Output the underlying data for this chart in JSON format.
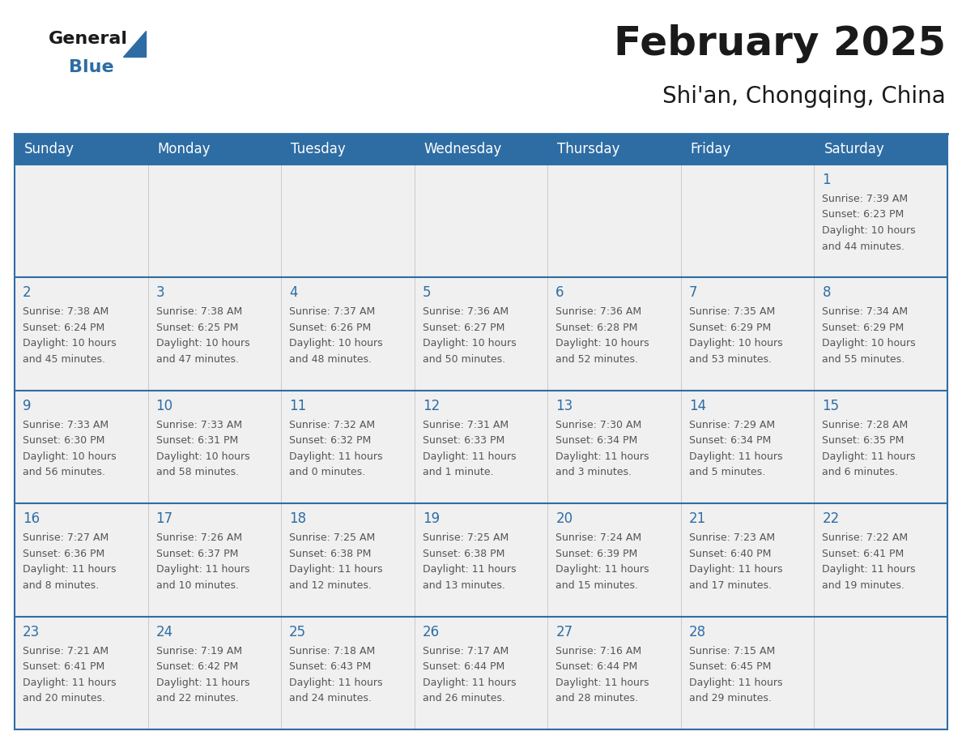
{
  "title": "February 2025",
  "subtitle": "Shi'an, Chongqing, China",
  "header_color": "#2E6DA4",
  "header_text_color": "#FFFFFF",
  "border_color": "#2E6DA4",
  "day_number_color": "#2E6DA4",
  "text_color": "#555555",
  "days_of_week": [
    "Sunday",
    "Monday",
    "Tuesday",
    "Wednesday",
    "Thursday",
    "Friday",
    "Saturday"
  ],
  "calendar_data": [
    [
      null,
      null,
      null,
      null,
      null,
      null,
      {
        "day": "1",
        "sunrise": "7:39 AM",
        "sunset": "6:23 PM",
        "daylight_line1": "Daylight: 10 hours",
        "daylight_line2": "and 44 minutes."
      }
    ],
    [
      {
        "day": "2",
        "sunrise": "7:38 AM",
        "sunset": "6:24 PM",
        "daylight_line1": "Daylight: 10 hours",
        "daylight_line2": "and 45 minutes."
      },
      {
        "day": "3",
        "sunrise": "7:38 AM",
        "sunset": "6:25 PM",
        "daylight_line1": "Daylight: 10 hours",
        "daylight_line2": "and 47 minutes."
      },
      {
        "day": "4",
        "sunrise": "7:37 AM",
        "sunset": "6:26 PM",
        "daylight_line1": "Daylight: 10 hours",
        "daylight_line2": "and 48 minutes."
      },
      {
        "day": "5",
        "sunrise": "7:36 AM",
        "sunset": "6:27 PM",
        "daylight_line1": "Daylight: 10 hours",
        "daylight_line2": "and 50 minutes."
      },
      {
        "day": "6",
        "sunrise": "7:36 AM",
        "sunset": "6:28 PM",
        "daylight_line1": "Daylight: 10 hours",
        "daylight_line2": "and 52 minutes."
      },
      {
        "day": "7",
        "sunrise": "7:35 AM",
        "sunset": "6:29 PM",
        "daylight_line1": "Daylight: 10 hours",
        "daylight_line2": "and 53 minutes."
      },
      {
        "day": "8",
        "sunrise": "7:34 AM",
        "sunset": "6:29 PM",
        "daylight_line1": "Daylight: 10 hours",
        "daylight_line2": "and 55 minutes."
      }
    ],
    [
      {
        "day": "9",
        "sunrise": "7:33 AM",
        "sunset": "6:30 PM",
        "daylight_line1": "Daylight: 10 hours",
        "daylight_line2": "and 56 minutes."
      },
      {
        "day": "10",
        "sunrise": "7:33 AM",
        "sunset": "6:31 PM",
        "daylight_line1": "Daylight: 10 hours",
        "daylight_line2": "and 58 minutes."
      },
      {
        "day": "11",
        "sunrise": "7:32 AM",
        "sunset": "6:32 PM",
        "daylight_line1": "Daylight: 11 hours",
        "daylight_line2": "and 0 minutes."
      },
      {
        "day": "12",
        "sunrise": "7:31 AM",
        "sunset": "6:33 PM",
        "daylight_line1": "Daylight: 11 hours",
        "daylight_line2": "and 1 minute."
      },
      {
        "day": "13",
        "sunrise": "7:30 AM",
        "sunset": "6:34 PM",
        "daylight_line1": "Daylight: 11 hours",
        "daylight_line2": "and 3 minutes."
      },
      {
        "day": "14",
        "sunrise": "7:29 AM",
        "sunset": "6:34 PM",
        "daylight_line1": "Daylight: 11 hours",
        "daylight_line2": "and 5 minutes."
      },
      {
        "day": "15",
        "sunrise": "7:28 AM",
        "sunset": "6:35 PM",
        "daylight_line1": "Daylight: 11 hours",
        "daylight_line2": "and 6 minutes."
      }
    ],
    [
      {
        "day": "16",
        "sunrise": "7:27 AM",
        "sunset": "6:36 PM",
        "daylight_line1": "Daylight: 11 hours",
        "daylight_line2": "and 8 minutes."
      },
      {
        "day": "17",
        "sunrise": "7:26 AM",
        "sunset": "6:37 PM",
        "daylight_line1": "Daylight: 11 hours",
        "daylight_line2": "and 10 minutes."
      },
      {
        "day": "18",
        "sunrise": "7:25 AM",
        "sunset": "6:38 PM",
        "daylight_line1": "Daylight: 11 hours",
        "daylight_line2": "and 12 minutes."
      },
      {
        "day": "19",
        "sunrise": "7:25 AM",
        "sunset": "6:38 PM",
        "daylight_line1": "Daylight: 11 hours",
        "daylight_line2": "and 13 minutes."
      },
      {
        "day": "20",
        "sunrise": "7:24 AM",
        "sunset": "6:39 PM",
        "daylight_line1": "Daylight: 11 hours",
        "daylight_line2": "and 15 minutes."
      },
      {
        "day": "21",
        "sunrise": "7:23 AM",
        "sunset": "6:40 PM",
        "daylight_line1": "Daylight: 11 hours",
        "daylight_line2": "and 17 minutes."
      },
      {
        "day": "22",
        "sunrise": "7:22 AM",
        "sunset": "6:41 PM",
        "daylight_line1": "Daylight: 11 hours",
        "daylight_line2": "and 19 minutes."
      }
    ],
    [
      {
        "day": "23",
        "sunrise": "7:21 AM",
        "sunset": "6:41 PM",
        "daylight_line1": "Daylight: 11 hours",
        "daylight_line2": "and 20 minutes."
      },
      {
        "day": "24",
        "sunrise": "7:19 AM",
        "sunset": "6:42 PM",
        "daylight_line1": "Daylight: 11 hours",
        "daylight_line2": "and 22 minutes."
      },
      {
        "day": "25",
        "sunrise": "7:18 AM",
        "sunset": "6:43 PM",
        "daylight_line1": "Daylight: 11 hours",
        "daylight_line2": "and 24 minutes."
      },
      {
        "day": "26",
        "sunrise": "7:17 AM",
        "sunset": "6:44 PM",
        "daylight_line1": "Daylight: 11 hours",
        "daylight_line2": "and 26 minutes."
      },
      {
        "day": "27",
        "sunrise": "7:16 AM",
        "sunset": "6:44 PM",
        "daylight_line1": "Daylight: 11 hours",
        "daylight_line2": "and 28 minutes."
      },
      {
        "day": "28",
        "sunrise": "7:15 AM",
        "sunset": "6:45 PM",
        "daylight_line1": "Daylight: 11 hours",
        "daylight_line2": "and 29 minutes."
      },
      null
    ]
  ],
  "title_fontsize": 36,
  "subtitle_fontsize": 20,
  "header_fontsize": 12,
  "day_num_fontsize": 12,
  "cell_text_fontsize": 9
}
